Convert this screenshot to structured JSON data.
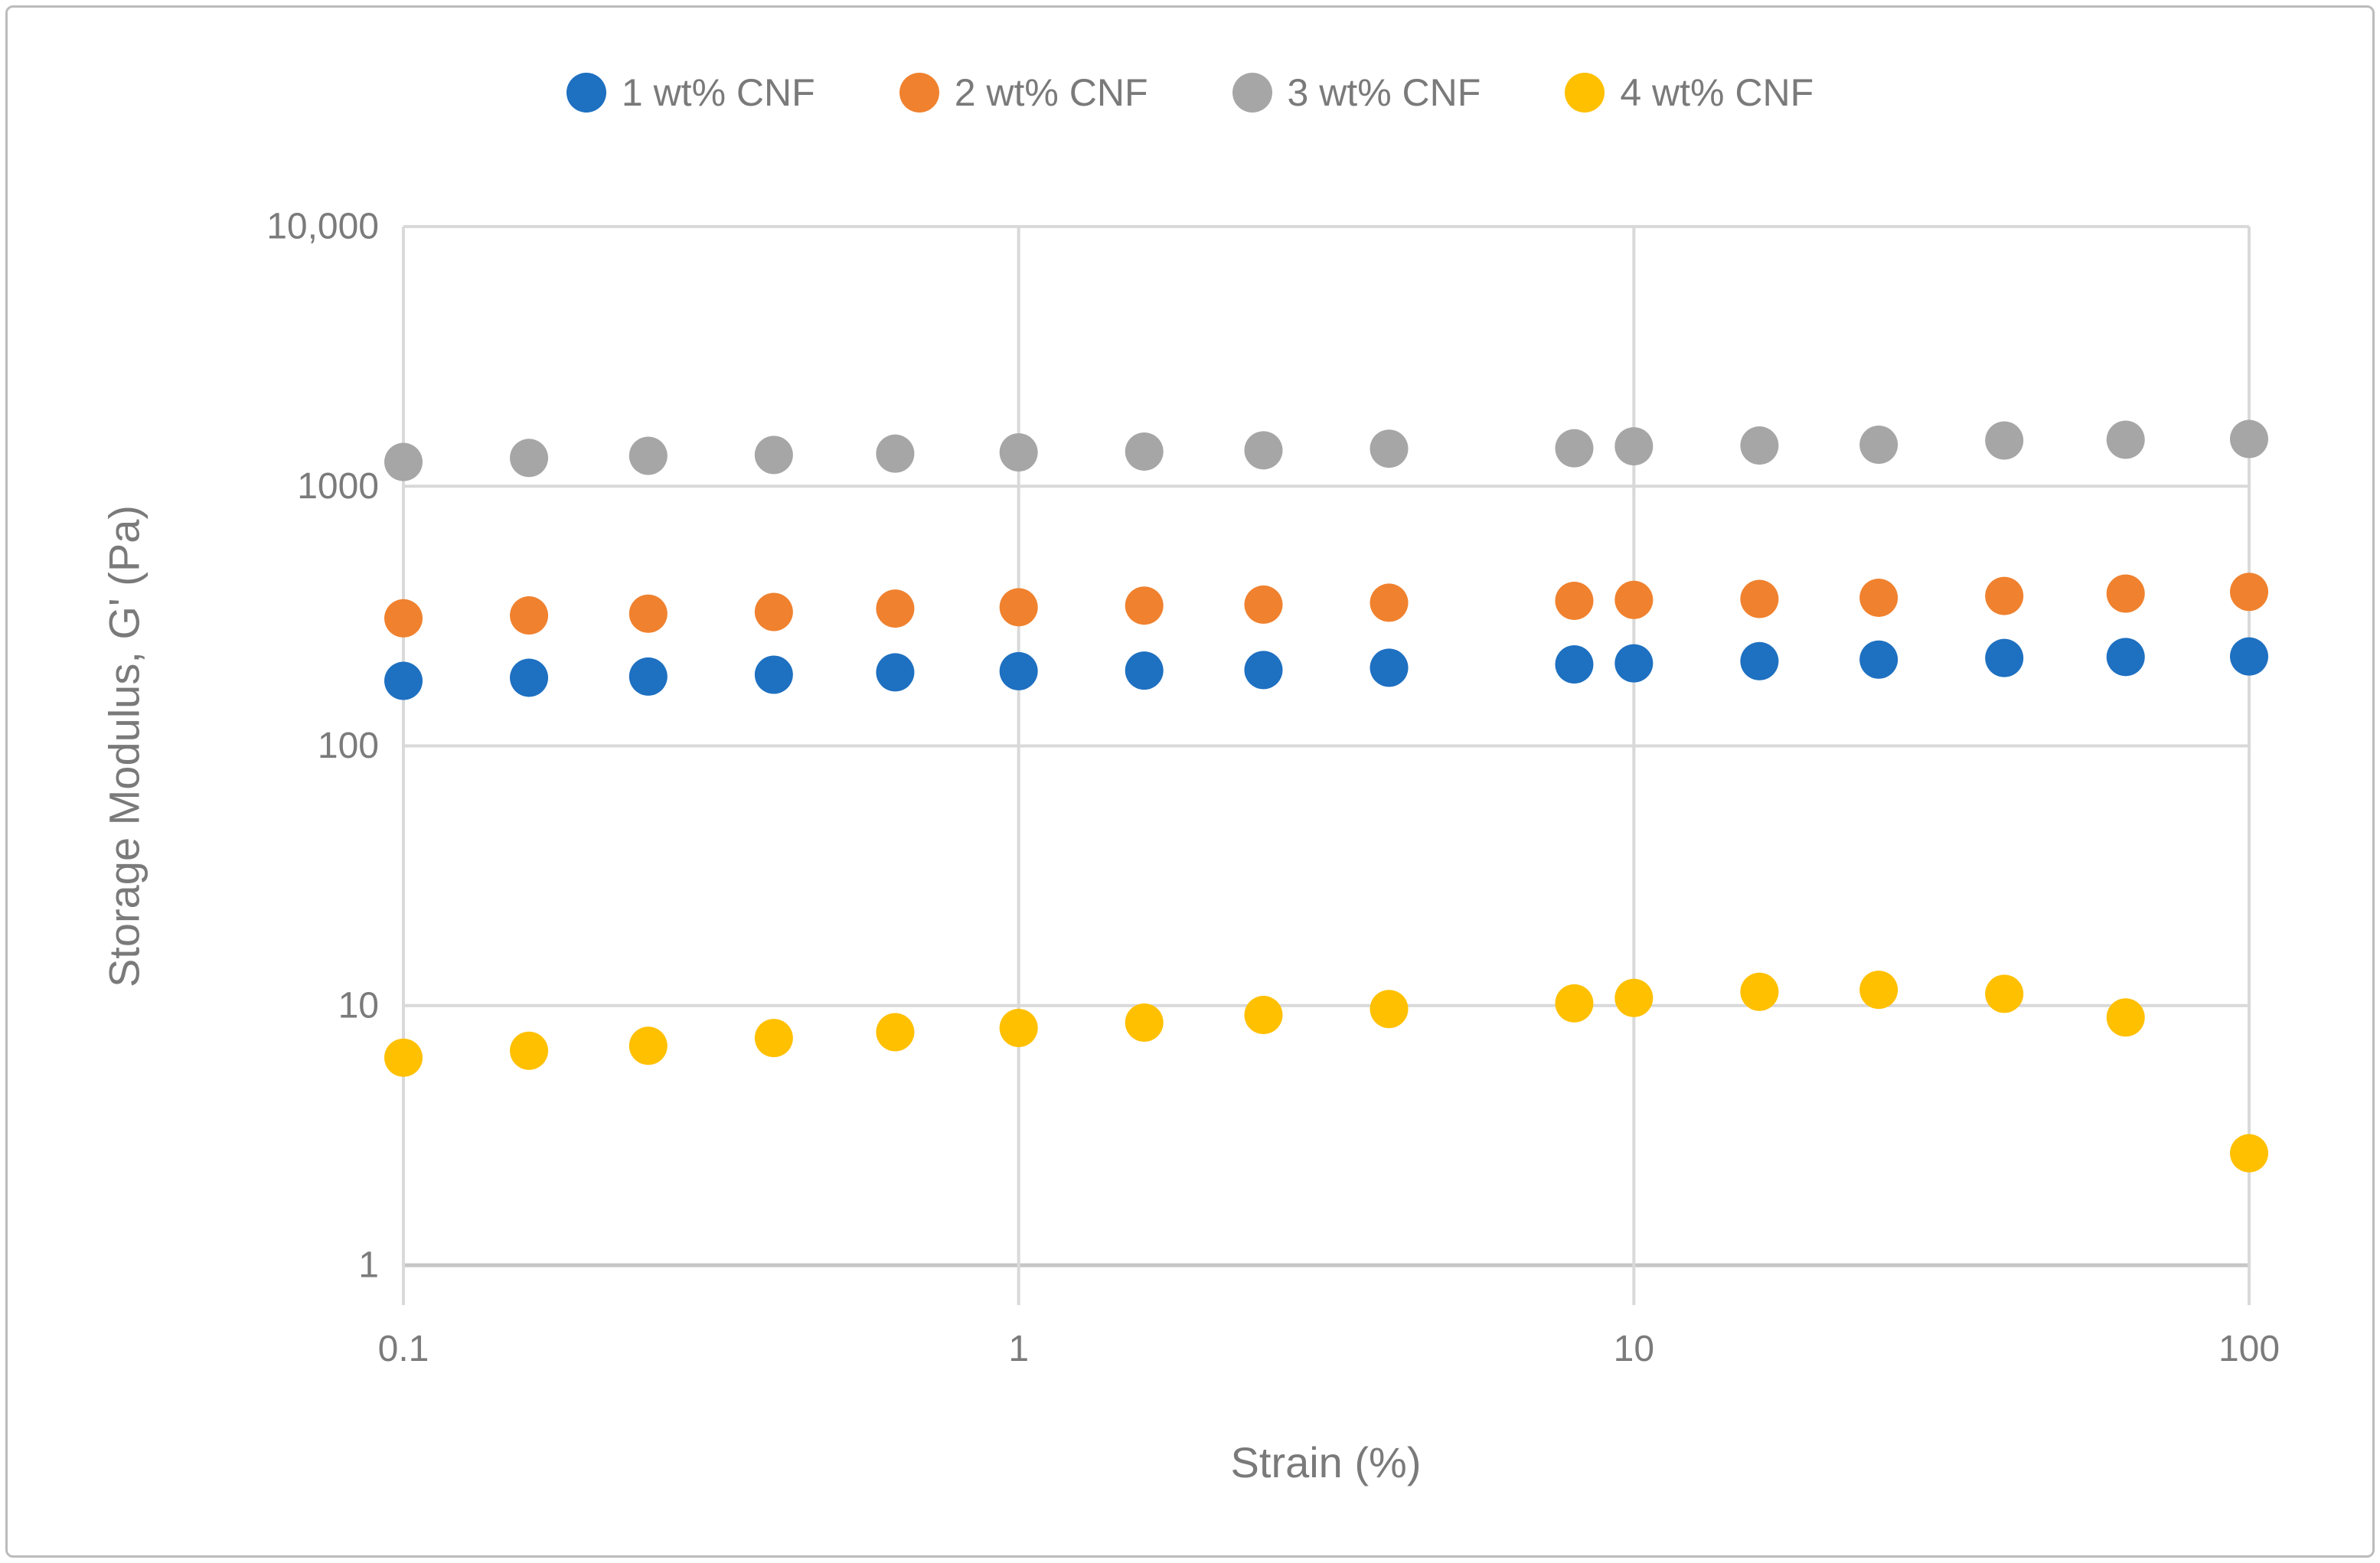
{
  "figure": {
    "background": "#FFFFFF",
    "border_color": "#BCBCBC",
    "gridline_color": "#D9D9D9",
    "axis_line_color": "#C6C6C6",
    "text_color": "#7A7A7A"
  },
  "legend": {
    "items": [
      {
        "label": "1 wt% CNF",
        "color": "#1E70C1",
        "marker": "circle-icon"
      },
      {
        "label": "2 wt% CNF",
        "color": "#F0812E",
        "marker": "circle-icon"
      },
      {
        "label": "3 wt% CNF",
        "color": "#A6A6A6",
        "marker": "circle-icon"
      },
      {
        "label": "4 wt% CNF",
        "color": "#FFC000",
        "marker": "circle-icon"
      }
    ]
  },
  "axes": {
    "x": {
      "title": "Strain (%)",
      "scale": "log",
      "ticks": [
        {
          "label": "0.1",
          "value": 0.1
        },
        {
          "label": "1",
          "value": 1
        },
        {
          "label": "10",
          "value": 10
        },
        {
          "label": "100",
          "value": 100
        }
      ]
    },
    "y": {
      "title": "Storage Modulus, G' (Pa)",
      "scale": "log",
      "ticks": [
        {
          "label": "10,000",
          "value": 10000
        },
        {
          "label": "1000",
          "value": 1000
        },
        {
          "label": "100",
          "value": 100
        },
        {
          "label": "10",
          "value": 10
        },
        {
          "label": "1",
          "value": 1
        }
      ]
    }
  },
  "chart_data": {
    "type": "scatter",
    "x_scale": "log",
    "y_scale": "log",
    "xlabel": "Strain (%)",
    "ylabel": "Storage Modulus, G' (Pa)",
    "xlim": [
      0.1,
      100
    ],
    "ylim": [
      1,
      10000
    ],
    "grid": true,
    "legend_position": "top",
    "marker": "circle",
    "marker_radius_px": 25,
    "x": [
      0.1,
      0.16,
      0.25,
      0.4,
      0.63,
      1,
      1.6,
      2.5,
      4,
      8,
      10,
      16,
      25,
      40,
      63,
      100
    ],
    "series": [
      {
        "name": "1 wt% CNF",
        "color": "#1E70C1",
        "values": [
          178,
          183,
          185,
          188,
          192,
          194,
          195,
          196,
          200,
          206,
          208,
          212,
          215,
          218,
          220,
          221
        ]
      },
      {
        "name": "2 wt% CNF",
        "color": "#F0812E",
        "values": [
          310,
          318,
          323,
          328,
          338,
          342,
          347,
          350,
          356,
          362,
          365,
          368,
          372,
          378,
          386,
          392
        ]
      },
      {
        "name": "3 wt% CNF",
        "color": "#A6A6A6",
        "values": [
          1240,
          1285,
          1310,
          1320,
          1335,
          1350,
          1360,
          1375,
          1395,
          1400,
          1425,
          1435,
          1445,
          1500,
          1510,
          1520
        ]
      },
      {
        "name": "4 wt% CNF",
        "color": "#FFC000",
        "values": [
          6.3,
          6.7,
          7.0,
          7.5,
          7.9,
          8.2,
          8.6,
          9.2,
          9.7,
          10.2,
          10.7,
          11.3,
          11.5,
          11.1,
          9.0,
          2.7
        ]
      }
    ]
  }
}
